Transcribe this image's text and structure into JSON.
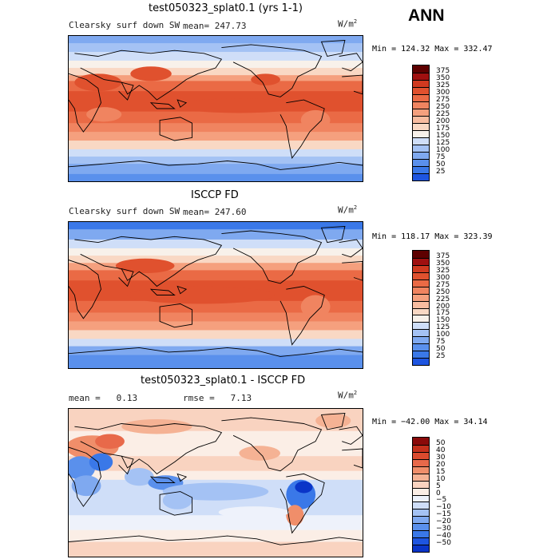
{
  "header": {
    "ann": "ANN"
  },
  "colors": {
    "sw_scale": [
      "#08306b",
      "#0a35c8",
      "#1e55e0",
      "#3a78e8",
      "#5a90ec",
      "#7fa9f0",
      "#a4c2f4",
      "#cfdef8",
      "#f8f1ea",
      "#f9d8c4",
      "#f8bca0",
      "#f5a07e",
      "#f08460",
      "#ea6a45",
      "#e0512e",
      "#d03a20",
      "#a01010",
      "#5e0000"
    ],
    "diff_scale": [
      "#080870",
      "#0a35c8",
      "#1e55e0",
      "#3a78e8",
      "#5a90ec",
      "#7fa9f0",
      "#a4c2f4",
      "#cfdef8",
      "#eef2fb",
      "#fbeee6",
      "#f9d3c0",
      "#f5b294",
      "#f08e6a",
      "#e8694a",
      "#da4a2e",
      "#c4301c",
      "#8a0a0a"
    ],
    "land": "#000000"
  },
  "panels": [
    {
      "id": "model",
      "title": "test050323_splat0.1 (yrs 1-1)",
      "field": "Clearsky surf down SW",
      "mean_label": "mean=",
      "mean": "247.73",
      "units": "W/m",
      "units_sup": "2",
      "minmax": "Min = 124.32 Max = 332.47",
      "legend": [
        "375",
        "350",
        "325",
        "300",
        "275",
        "250",
        "225",
        "200",
        "175",
        "150",
        "125",
        "100",
        "75",
        "50",
        "25"
      ],
      "scale": "sw"
    },
    {
      "id": "obs",
      "title": "ISCCP FD",
      "field": "Clearsky surf down SW",
      "mean_label": "mean=",
      "mean": "247.60",
      "units": "W/m",
      "units_sup": "2",
      "minmax": "Min = 118.17 Max = 323.39",
      "legend": [
        "375",
        "350",
        "325",
        "300",
        "275",
        "250",
        "225",
        "200",
        "175",
        "150",
        "125",
        "100",
        "75",
        "50",
        "25"
      ],
      "scale": "sw"
    },
    {
      "id": "diff",
      "title": "test050323_splat0.1 - ISCCP FD",
      "mean_label": "mean =",
      "mean": "0.13",
      "rmse_label": "rmse =",
      "rmse": "7.13",
      "units": "W/m",
      "units_sup": "2",
      "minmax": "Min = −42.00 Max =  34.14",
      "legend": [
        "50",
        "40",
        "30",
        "20",
        "15",
        "10",
        "5",
        "0",
        "−5",
        "−10",
        "−15",
        "−20",
        "−30",
        "−40",
        "−50"
      ],
      "scale": "diff"
    }
  ]
}
